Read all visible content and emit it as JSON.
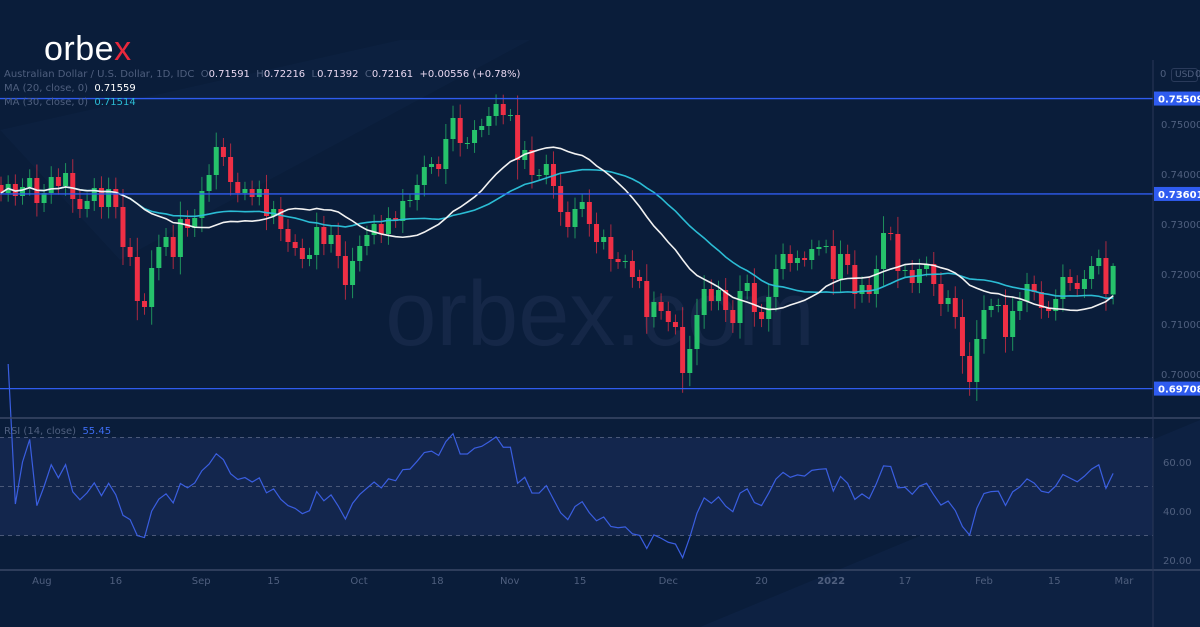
{
  "brand": {
    "logo_main": "orbe",
    "logo_accent": "x",
    "watermark": "orbex.com"
  },
  "legend": {
    "symbol": "Australian Dollar / U.S. Dollar, 1D, IDC",
    "o_label": "O",
    "o": "0.71591",
    "h_label": "H",
    "h": "0.72216",
    "l_label": "L",
    "l": "0.71392",
    "c_label": "C",
    "c": "0.72161",
    "change": "+0.00556 (+0.78%)",
    "ma20_label": "MA (20, close, 0)",
    "ma20_value": "0.71559",
    "ma30_label": "MA (30, close, 0)",
    "ma30_value": "0.71514",
    "rsi_label": "RSI (14, close)",
    "rsi_value": "55.45"
  },
  "price_axis": {
    "currency": "USD",
    "top_left": "0",
    "top_right": "0"
  },
  "colors": {
    "background": "#0a1d3a",
    "up": "#26c26b",
    "down": "#ef2f45",
    "ma20": "#f2f2f2",
    "ma30": "#2bbcd4",
    "hline": "#2f5cf0",
    "rsi": "#3a5ee0",
    "rsi_band": "#13264d"
  },
  "chart_data": [
    {
      "type": "candlestick",
      "title": "Australian Dollar / U.S. Dollar, 1D, IDC",
      "ylim": [
        0.6955,
        0.7605
      ],
      "y_ticks": [
        "0.75000",
        "0.74000",
        "0.73000",
        "0.72000",
        "0.71000",
        "0.70000"
      ],
      "first_open": 0.7378,
      "last_bar": {
        "open": 0.71591,
        "high": 0.72216,
        "low": 0.71392,
        "close": 0.72161
      },
      "closes": [
        0.7362,
        0.738,
        0.7356,
        0.7374,
        0.7392,
        0.7342,
        0.7362,
        0.7394,
        0.7376,
        0.7402,
        0.735,
        0.733,
        0.7346,
        0.7372,
        0.7334,
        0.737,
        0.7334,
        0.7254,
        0.7234,
        0.7146,
        0.7134,
        0.7212,
        0.7254,
        0.7274,
        0.7234,
        0.731,
        0.7292,
        0.7312,
        0.7366,
        0.7398,
        0.7454,
        0.7434,
        0.7384,
        0.7362,
        0.737,
        0.7354,
        0.737,
        0.7316,
        0.733,
        0.729,
        0.7264,
        0.7252,
        0.723,
        0.7238,
        0.7294,
        0.726,
        0.7278,
        0.7236,
        0.7178,
        0.7226,
        0.7256,
        0.7278,
        0.73,
        0.728,
        0.7312,
        0.7306,
        0.7346,
        0.7348,
        0.7378,
        0.7414,
        0.742,
        0.741,
        0.747,
        0.7512,
        0.7462,
        0.7462,
        0.7488,
        0.7496,
        0.7516,
        0.754,
        0.7518,
        0.7518,
        0.7428,
        0.7448,
        0.7398,
        0.7398,
        0.742,
        0.7376,
        0.7324,
        0.7294,
        0.733,
        0.7344,
        0.73,
        0.7264,
        0.7274,
        0.723,
        0.7224,
        0.7226,
        0.7194,
        0.7186,
        0.7114,
        0.7144,
        0.7126,
        0.7104,
        0.7094,
        0.7002,
        0.705,
        0.7118,
        0.717,
        0.7146,
        0.7168,
        0.7128,
        0.7102,
        0.7166,
        0.7182,
        0.7124,
        0.711,
        0.7154,
        0.721,
        0.724,
        0.7222,
        0.7232,
        0.7228,
        0.725,
        0.7254,
        0.7256,
        0.719,
        0.724,
        0.7218,
        0.716,
        0.7178,
        0.716,
        0.721,
        0.7282,
        0.728,
        0.7206,
        0.7208,
        0.7182,
        0.721,
        0.722,
        0.718,
        0.714,
        0.7152,
        0.7114,
        0.7036,
        0.6984,
        0.707,
        0.7128,
        0.7136,
        0.7138,
        0.7074,
        0.7126,
        0.7146,
        0.718,
        0.7164,
        0.7132,
        0.7126,
        0.715,
        0.7194,
        0.7182,
        0.717,
        0.719,
        0.7216,
        0.7232,
        0.716,
        0.72161
      ],
      "horizontal_levels": [
        {
          "value": 0.75509,
          "label": "0.75509"
        },
        {
          "value": 0.73601,
          "label": "0.73601"
        },
        {
          "value": 0.69708,
          "label": "0.69708"
        }
      ],
      "moving_averages": [
        {
          "name": "MA (20, close, 0)",
          "period": 20
        },
        {
          "name": "MA (30, close, 0)",
          "period": 30
        }
      ]
    },
    {
      "type": "line",
      "title": "RSI (14, close)",
      "period": 14,
      "ylim": [
        14,
        76
      ],
      "y_ticks": [
        "60.00",
        "40.00",
        "20.00"
      ],
      "band": [
        30,
        70
      ],
      "midline": 50
    }
  ],
  "time_axis": [
    {
      "label": "Aug",
      "bar": 5.7
    },
    {
      "label": "16",
      "bar": 16
    },
    {
      "label": "Sep",
      "bar": 27.9
    },
    {
      "label": "15",
      "bar": 38
    },
    {
      "label": "Oct",
      "bar": 49.9
    },
    {
      "label": "18",
      "bar": 60.8
    },
    {
      "label": "Nov",
      "bar": 70.9
    },
    {
      "label": "15",
      "bar": 80.7
    },
    {
      "label": "Dec",
      "bar": 93
    },
    {
      "label": "20",
      "bar": 106
    },
    {
      "label": "2022",
      "bar": 115.7,
      "bold": true
    },
    {
      "label": "17",
      "bar": 126
    },
    {
      "label": "Feb",
      "bar": 137
    },
    {
      "label": "15",
      "bar": 146.8
    },
    {
      "label": "Mar",
      "bar": 156.5
    }
  ]
}
